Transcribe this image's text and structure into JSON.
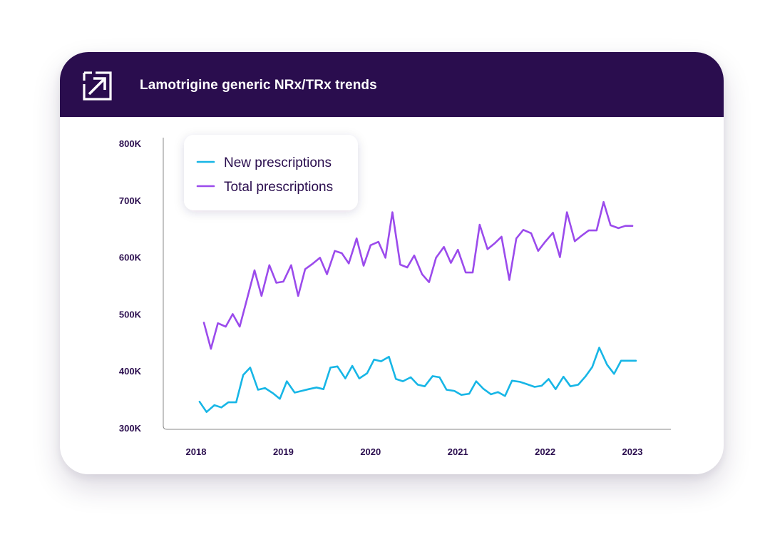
{
  "header": {
    "title": "Lamotrigine generic NRx/TRx trends",
    "header_color": "#2a0d4e",
    "logo_icon": "arrow-out-box-icon"
  },
  "chart_data": {
    "type": "line",
    "title": "Lamotrigine generic NRx/TRx trends",
    "xlabel": "",
    "ylabel": "",
    "ylim": [
      300000,
      800000
    ],
    "xlim": [
      2018.0,
      2023.0
    ],
    "y_ticks": [
      300000,
      400000,
      500000,
      600000,
      700000,
      800000
    ],
    "y_tick_labels": [
      "300K",
      "400K",
      "500K",
      "600K",
      "700K",
      "800K"
    ],
    "x_ticks": [
      2018,
      2019,
      2020,
      2021,
      2022,
      2023
    ],
    "x_tick_labels": [
      "2018",
      "2019",
      "2020",
      "2021",
      "2022",
      "2023"
    ],
    "grid": false,
    "legend": "top-left",
    "series": [
      {
        "name": "New prescriptions",
        "color": "#17b6e6",
        "x": [
          2018.04,
          2018.12,
          2018.21,
          2018.29,
          2018.37,
          2018.46,
          2018.54,
          2018.62,
          2018.71,
          2018.79,
          2018.88,
          2018.96,
          2019.04,
          2019.13,
          2019.21,
          2019.29,
          2019.38,
          2019.46,
          2019.54,
          2019.62,
          2019.71,
          2019.79,
          2019.87,
          2019.96,
          2020.04,
          2020.12,
          2020.21,
          2020.29,
          2020.37,
          2020.46,
          2020.54,
          2020.62,
          2020.71,
          2020.79,
          2020.87,
          2020.96,
          2021.04,
          2021.13,
          2021.21,
          2021.29,
          2021.38,
          2021.46,
          2021.54,
          2021.62,
          2021.71,
          2021.79,
          2021.88,
          2021.96,
          2022.04,
          2022.12,
          2022.21,
          2022.29,
          2022.38,
          2022.46,
          2022.54,
          2022.62,
          2022.71,
          2022.79,
          2022.87,
          2022.96,
          2023.04
        ],
        "values": [
          346000,
          328000,
          340000,
          336000,
          345000,
          345000,
          393000,
          406000,
          367000,
          370000,
          361000,
          351000,
          382000,
          362000,
          365000,
          368000,
          371000,
          368000,
          406000,
          408000,
          387000,
          409000,
          387000,
          396000,
          420000,
          417000,
          425000,
          386000,
          382000,
          389000,
          376000,
          373000,
          391000,
          389000,
          367000,
          365000,
          358000,
          360000,
          382000,
          369000,
          359000,
          363000,
          356000,
          383000,
          381000,
          377000,
          372000,
          374000,
          386000,
          368000,
          390000,
          373000,
          376000,
          390000,
          407000,
          441000,
          411000,
          395000,
          418000,
          418000,
          418000
        ]
      },
      {
        "name": "Total prescriptions",
        "color": "#9b4bec",
        "x": [
          2018.09,
          2018.17,
          2018.25,
          2018.34,
          2018.42,
          2018.5,
          2018.59,
          2018.67,
          2018.75,
          2018.84,
          2018.92,
          2019.0,
          2019.09,
          2019.17,
          2019.25,
          2019.34,
          2019.42,
          2019.5,
          2019.59,
          2019.67,
          2019.75,
          2019.84,
          2019.92,
          2020.0,
          2020.09,
          2020.17,
          2020.25,
          2020.34,
          2020.42,
          2020.5,
          2020.59,
          2020.67,
          2020.75,
          2020.84,
          2020.92,
          2021.0,
          2021.09,
          2021.17,
          2021.25,
          2021.34,
          2021.42,
          2021.5,
          2021.59,
          2021.67,
          2021.75,
          2021.84,
          2021.92,
          2022.0,
          2022.09,
          2022.17,
          2022.25,
          2022.34,
          2022.42,
          2022.5,
          2022.59,
          2022.67,
          2022.75,
          2022.84,
          2022.92,
          2023.0
        ],
        "values": [
          485000,
          439000,
          484000,
          478000,
          500000,
          478000,
          530000,
          577000,
          532000,
          586000,
          555000,
          557000,
          586000,
          532000,
          579000,
          589000,
          599000,
          570000,
          611000,
          607000,
          589000,
          633000,
          585000,
          621000,
          627000,
          599000,
          679000,
          587000,
          582000,
          603000,
          570000,
          556000,
          599000,
          618000,
          590000,
          613000,
          573000,
          573000,
          657000,
          614000,
          624000,
          636000,
          560000,
          633000,
          648000,
          642000,
          611000,
          627000,
          643000,
          600000,
          679000,
          628000,
          638000,
          647000,
          647000,
          697000,
          656000,
          651000,
          655000,
          655000
        ]
      }
    ]
  }
}
